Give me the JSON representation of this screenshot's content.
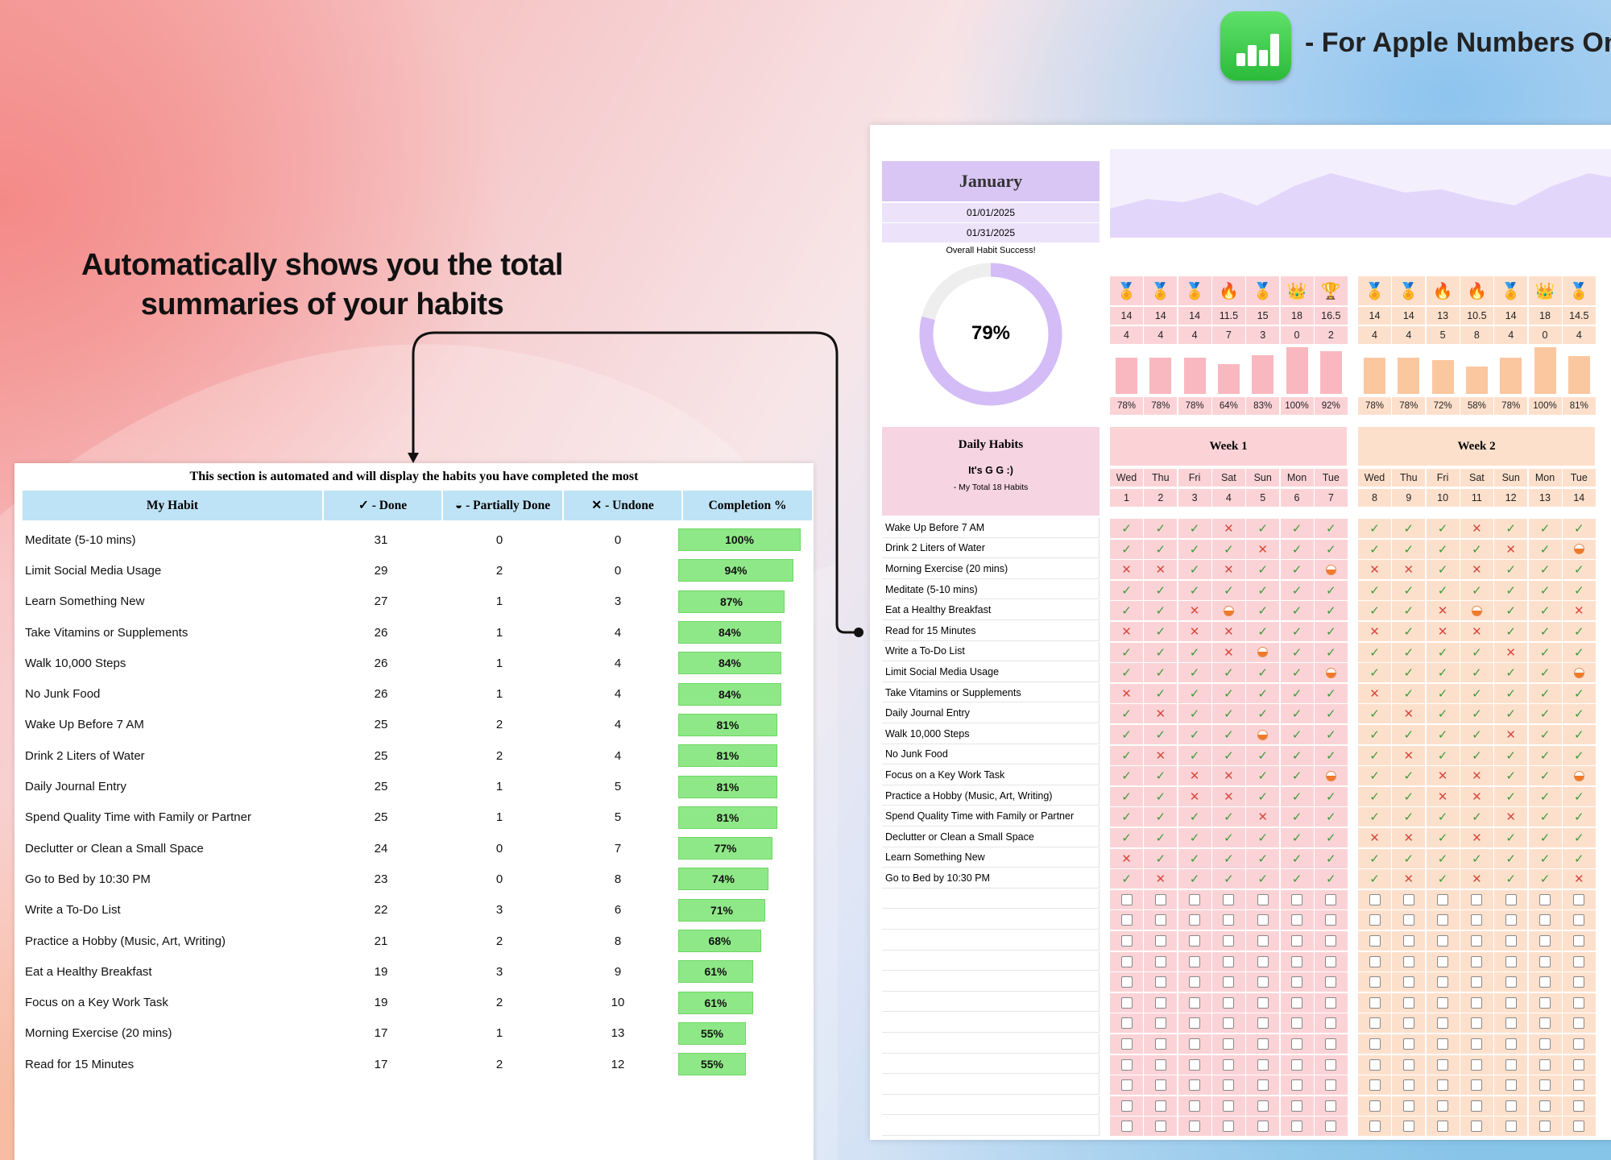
{
  "promo": {
    "headline_line1": "Automatically shows you the total",
    "headline_line2": "summaries of your habits",
    "apple_text": "- For Apple Numbers Only",
    "numbers_app_icon": "numbers-app-icon"
  },
  "summary": {
    "caption": "This section is automated and will display the habits you have completed the most",
    "headers": {
      "habit": "My Habit",
      "done": "✓ - Done",
      "partial": "◒ - Partially Done",
      "undone": "✕ - Undone",
      "completion": "Completion %"
    },
    "rows": [
      {
        "name": "Meditate (5-10 mins)",
        "done": "31",
        "partial": "0",
        "undone": "0",
        "pct": "100%",
        "fraction": 1.0
      },
      {
        "name": "Limit Social Media Usage",
        "done": "29",
        "partial": "2",
        "undone": "0",
        "pct": "94%",
        "fraction": 0.94
      },
      {
        "name": "Learn Something New",
        "done": "27",
        "partial": "1",
        "undone": "3",
        "pct": "87%",
        "fraction": 0.87
      },
      {
        "name": "Take Vitamins or Supplements",
        "done": "26",
        "partial": "1",
        "undone": "4",
        "pct": "84%",
        "fraction": 0.84
      },
      {
        "name": "Walk 10,000 Steps",
        "done": "26",
        "partial": "1",
        "undone": "4",
        "pct": "84%",
        "fraction": 0.84
      },
      {
        "name": "No Junk Food",
        "done": "26",
        "partial": "1",
        "undone": "4",
        "pct": "84%",
        "fraction": 0.84
      },
      {
        "name": "Wake Up Before 7 AM",
        "done": "25",
        "partial": "2",
        "undone": "4",
        "pct": "81%",
        "fraction": 0.81
      },
      {
        "name": "Drink 2 Liters of Water",
        "done": "25",
        "partial": "2",
        "undone": "4",
        "pct": "81%",
        "fraction": 0.81
      },
      {
        "name": "Daily Journal Entry",
        "done": "25",
        "partial": "1",
        "undone": "5",
        "pct": "81%",
        "fraction": 0.81
      },
      {
        "name": "Spend Quality Time with Family or Partner",
        "done": "25",
        "partial": "1",
        "undone": "5",
        "pct": "81%",
        "fraction": 0.81
      },
      {
        "name": "Declutter or Clean a Small Space",
        "done": "24",
        "partial": "0",
        "undone": "7",
        "pct": "77%",
        "fraction": 0.77
      },
      {
        "name": "Go to Bed by 10:30 PM",
        "done": "23",
        "partial": "0",
        "undone": "8",
        "pct": "74%",
        "fraction": 0.74
      },
      {
        "name": "Write a To-Do List",
        "done": "22",
        "partial": "3",
        "undone": "6",
        "pct": "71%",
        "fraction": 0.71
      },
      {
        "name": "Practice a Hobby (Music, Art, Writing)",
        "done": "21",
        "partial": "2",
        "undone": "8",
        "pct": "68%",
        "fraction": 0.68
      },
      {
        "name": "Eat a Healthy Breakfast",
        "done": "19",
        "partial": "3",
        "undone": "9",
        "pct": "61%",
        "fraction": 0.61
      },
      {
        "name": "Focus on a Key Work Task",
        "done": "19",
        "partial": "2",
        "undone": "10",
        "pct": "61%",
        "fraction": 0.61
      },
      {
        "name": "Morning Exercise (20 mins)",
        "done": "17",
        "partial": "1",
        "undone": "13",
        "pct": "55%",
        "fraction": 0.55
      },
      {
        "name": "Read for 15 Minutes",
        "done": "17",
        "partial": "2",
        "undone": "12",
        "pct": "55%",
        "fraction": 0.55
      }
    ]
  },
  "tracker": {
    "month": "January",
    "start_date": "01/01/2025",
    "end_date": "01/31/2025",
    "overall_label": "Overall Habit Success!",
    "overall_pct": "79%",
    "overall_fraction": 0.79,
    "daily_habits_title": "Daily Habits",
    "user_name": "It's G G :)",
    "total_habits": "- My Total 18 Habits",
    "habits": [
      "Wake Up Before 7 AM",
      "Drink 2 Liters of Water",
      "Morning Exercise (20 mins)",
      "Meditate (5-10 mins)",
      "Eat a Healthy Breakfast",
      "Read for 15 Minutes",
      "Write a To-Do List",
      "Limit Social Media Usage",
      "Take Vitamins or Supplements",
      "Daily Journal Entry",
      "Walk 10,000 Steps",
      "No Junk Food",
      "Focus on a Key Work Task",
      "Practice a Hobby (Music, Art, Writing)",
      "Spend Quality Time with Family or Partner",
      "Declutter or Clean a Small Space",
      "Learn Something New",
      "Go to Bed by 10:30 PM"
    ],
    "weeks": [
      {
        "title": "Week 1",
        "color": "#fbd3d6",
        "bar_color": "#f9b8bf",
        "days": [
          "Wed",
          "Thu",
          "Fri",
          "Sat",
          "Sun",
          "Mon",
          "Tue"
        ],
        "dates": [
          "1",
          "2",
          "3",
          "4",
          "5",
          "6",
          "7"
        ],
        "icons": [
          "medal-icon",
          "medal-icon",
          "medal-icon",
          "fire-icon",
          "medal-icon",
          "crown-icon",
          "trophy-icon"
        ],
        "scores": [
          "14",
          "14",
          "14",
          "11.5",
          "15",
          "18",
          "16.5"
        ],
        "misses": [
          "4",
          "4",
          "4",
          "7",
          "3",
          "0",
          "2"
        ],
        "pcts": [
          "78%",
          "78%",
          "78%",
          "64%",
          "83%",
          "100%",
          "92%"
        ],
        "fractions": [
          0.78,
          0.78,
          0.78,
          0.64,
          0.83,
          1.0,
          0.92
        ],
        "grid": [
          "vvvxvvv",
          "vvvvxvv",
          "xxvxvvh",
          "vvvvvvv",
          "vvxhvvv",
          "xvxxvvv",
          "vvvxhvv",
          "vvvvvvh",
          "xvvvvvv",
          "vxvvvvv",
          "vvvvhvv",
          "vxvvvvv",
          "vvxxvvh",
          "vvxxvvv",
          "vvvvxvv",
          "vvvvvvv",
          "xvvvvvv",
          "vxvvvvv"
        ]
      },
      {
        "title": "Week 2",
        "color": "#fde0cc",
        "bar_color": "#fbc79f",
        "days": [
          "Wed",
          "Thu",
          "Fri",
          "Sat",
          "Sun",
          "Mon",
          "Tue"
        ],
        "dates": [
          "8",
          "9",
          "10",
          "11",
          "12",
          "13",
          "14"
        ],
        "icons": [
          "medal-icon",
          "medal-icon",
          "fire-icon",
          "fire-icon",
          "medal-icon",
          "crown-icon",
          "medal-icon"
        ],
        "scores": [
          "14",
          "14",
          "13",
          "10.5",
          "14",
          "18",
          "14.5"
        ],
        "misses": [
          "4",
          "4",
          "5",
          "8",
          "4",
          "0",
          "4"
        ],
        "pcts": [
          "78%",
          "78%",
          "72%",
          "58%",
          "78%",
          "100%",
          "81%"
        ],
        "fractions": [
          0.78,
          0.78,
          0.72,
          0.58,
          0.78,
          1.0,
          0.81
        ],
        "grid": [
          "vvvxvvv",
          "vvvvxvh",
          "xxvxvvv",
          "vvvvvvv",
          "vvxhvvx",
          "xvxxvvv",
          "vvvvxvv",
          "vvvvvvh",
          "xvvvvvv",
          "vxvvvvv",
          "vvvvxvv",
          "vxvvvvv",
          "vvxxvvh",
          "vvxxvvv",
          "vvvvxvv",
          "xxvxvvv",
          "vvvvvvv",
          "vxvxvvx"
        ]
      }
    ],
    "area_values": [
      0.45,
      0.6,
      0.55,
      0.7,
      0.5,
      0.8,
      1.0,
      0.85,
      0.7,
      0.75,
      0.6,
      0.5,
      0.8,
      1.0,
      0.9
    ]
  }
}
